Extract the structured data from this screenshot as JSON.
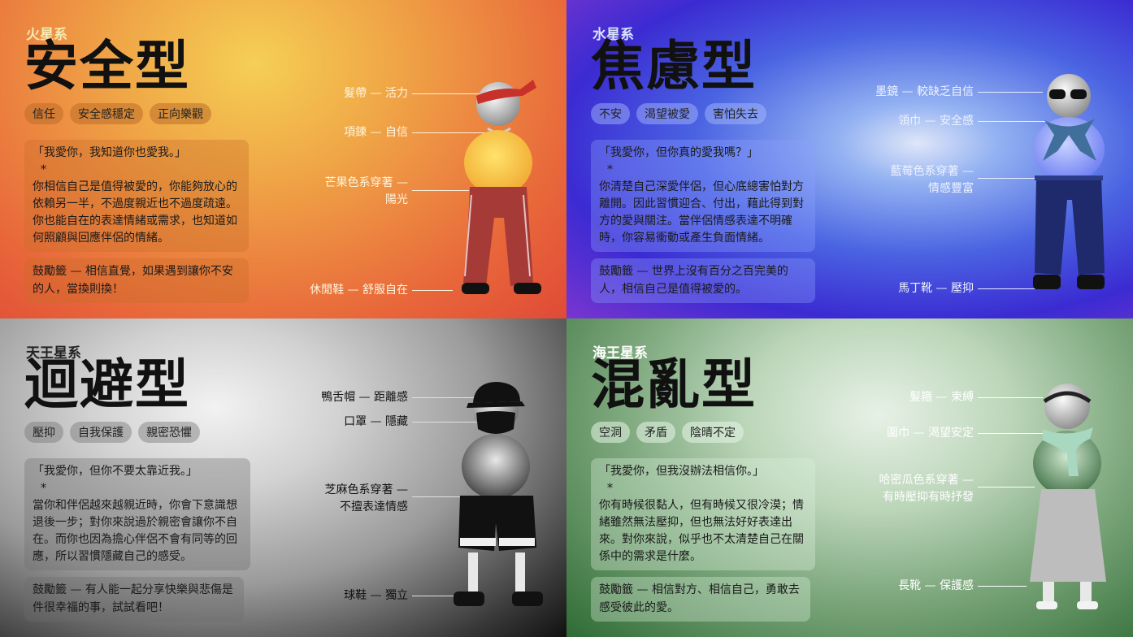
{
  "panels": [
    {
      "planet": "火星系",
      "type": "安全型",
      "tags": [
        "信任",
        "安全感穩定",
        "正向樂觀"
      ],
      "quote": "「我愛你，我知道你也愛我。」",
      "star": "*",
      "description": "你相信自己是值得被愛的，你能夠放心的依賴另一半，不過度親近也不過度疏遠。你也能自在的表達情緒或需求，也知道如何照顧與回應伴侶的情緒。",
      "encouragement": "鼓勵籤 — 相信直覺，如果遇到讓你不安的人，當換則換！",
      "labels": [
        "髮帶 — 活力",
        "項鍊 — 自信",
        "芒果色系穿著 —",
        "陽光",
        "休閒鞋 — 舒服自在"
      ],
      "icon": "person-illustration-headband-red-pants"
    },
    {
      "planet": "水星系",
      "type": "焦慮型",
      "tags": [
        "不安",
        "渴望被愛",
        "害怕失去"
      ],
      "quote": "「我愛你，但你真的愛我嗎？」",
      "star": "*",
      "description": "你清楚自己深愛伴侶，但心底總害怕對方離開。因此習慣迎合、付出，藉此得到對方的愛與關注。當伴侶情感表達不明確時，你容易衝動或產生負面情緒。",
      "encouragement": "鼓勵籤 — 世界上沒有百分之百完美的人，相信自己是值得被愛的。",
      "labels": [
        "墨鏡 — 較缺乏自信",
        "領巾 — 安全感",
        "藍莓色系穿著 —",
        "情感豐富",
        "馬丁靴 — 壓抑"
      ],
      "icon": "person-illustration-sunglasses-scarf-jeans"
    },
    {
      "planet": "天王星系",
      "type": "迴避型",
      "tags": [
        "壓抑",
        "自我保護",
        "親密恐懼"
      ],
      "quote": "「我愛你，但你不要太靠近我。」",
      "star": "*",
      "description": "當你和伴侶越來越親近時，你會下意識想退後一步；對你來說過於親密會讓你不自在。而你也因為擔心伴侶不會有同等的回應，所以習慣隱藏自己的感受。",
      "encouragement": "鼓勵籤 — 有人能一起分享快樂與悲傷是件很幸福的事，試試看吧！",
      "labels": [
        "鴨舌帽 — 距離感",
        "口罩 — 隱藏",
        "芝麻色系穿著 —",
        "不擅表達情感",
        "球鞋 — 獨立"
      ],
      "icon": "person-illustration-cap-mask-shorts"
    },
    {
      "planet": "海王星系",
      "type": "混亂型",
      "tags": [
        "空洞",
        "矛盾",
        "陰晴不定"
      ],
      "quote": "「我愛你，但我沒辦法相信你。」",
      "star": "*",
      "description": "你有時候很黏人，但有時候又很冷漠；情緒雖然無法壓抑，但也無法好好表達出來。對你來說，似乎也不太清楚自己在關係中的需求是什麼。",
      "encouragement": "鼓勵籤 — 相信對方、相信自己，勇敢去感受彼此的愛。",
      "labels": [
        "髮箍 — 束縛",
        "圍巾 — 渴望安定",
        "哈密瓜色系穿著 —",
        "有時壓抑有時抒發",
        "長靴 — 保護感"
      ],
      "icon": "person-illustration-headband-scarf-skirt"
    }
  ]
}
